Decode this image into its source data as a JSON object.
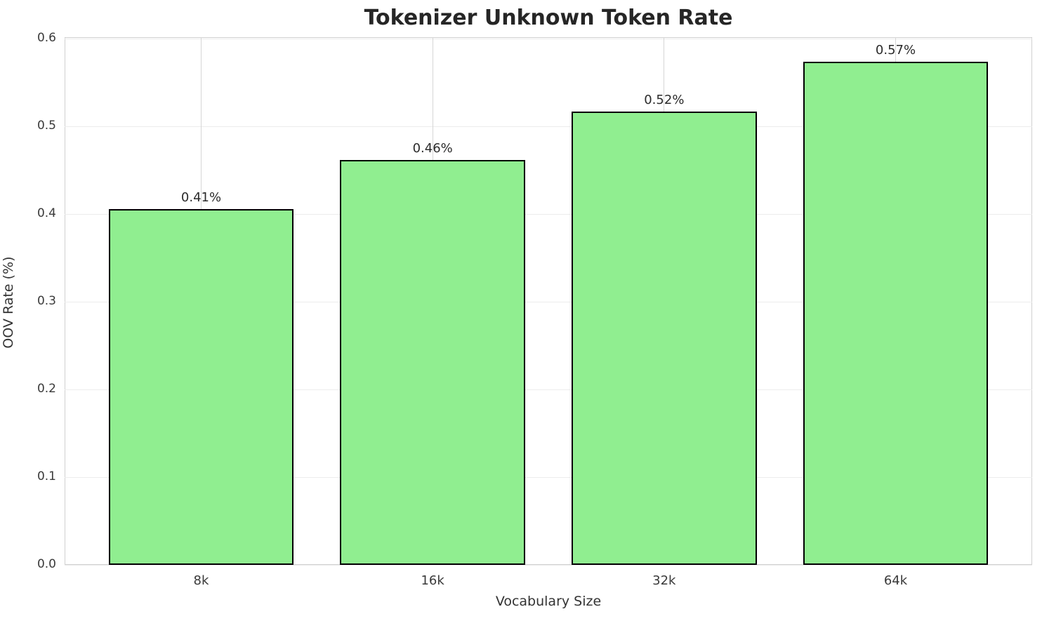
{
  "chart_data": {
    "type": "bar",
    "title": "Tokenizer Unknown Token Rate",
    "xlabel": "Vocabulary Size",
    "ylabel": "OOV Rate (%)",
    "categories": [
      "8k",
      "16k",
      "32k",
      "64k"
    ],
    "values": [
      0.406,
      0.462,
      0.517,
      0.574
    ],
    "bar_labels": [
      "0.41%",
      "0.46%",
      "0.52%",
      "0.57%"
    ],
    "yticks": [
      0.0,
      0.1,
      0.2,
      0.3,
      0.4,
      0.5,
      0.6
    ],
    "ytick_labels": [
      "0.0",
      "0.1",
      "0.2",
      "0.3",
      "0.4",
      "0.5",
      "0.6"
    ],
    "ylim": [
      0,
      0.6
    ],
    "grid": true,
    "legend": "none",
    "bar_color": "#90EE90",
    "bar_edge_color": "#000000",
    "bar_width_fraction": 0.8
  }
}
